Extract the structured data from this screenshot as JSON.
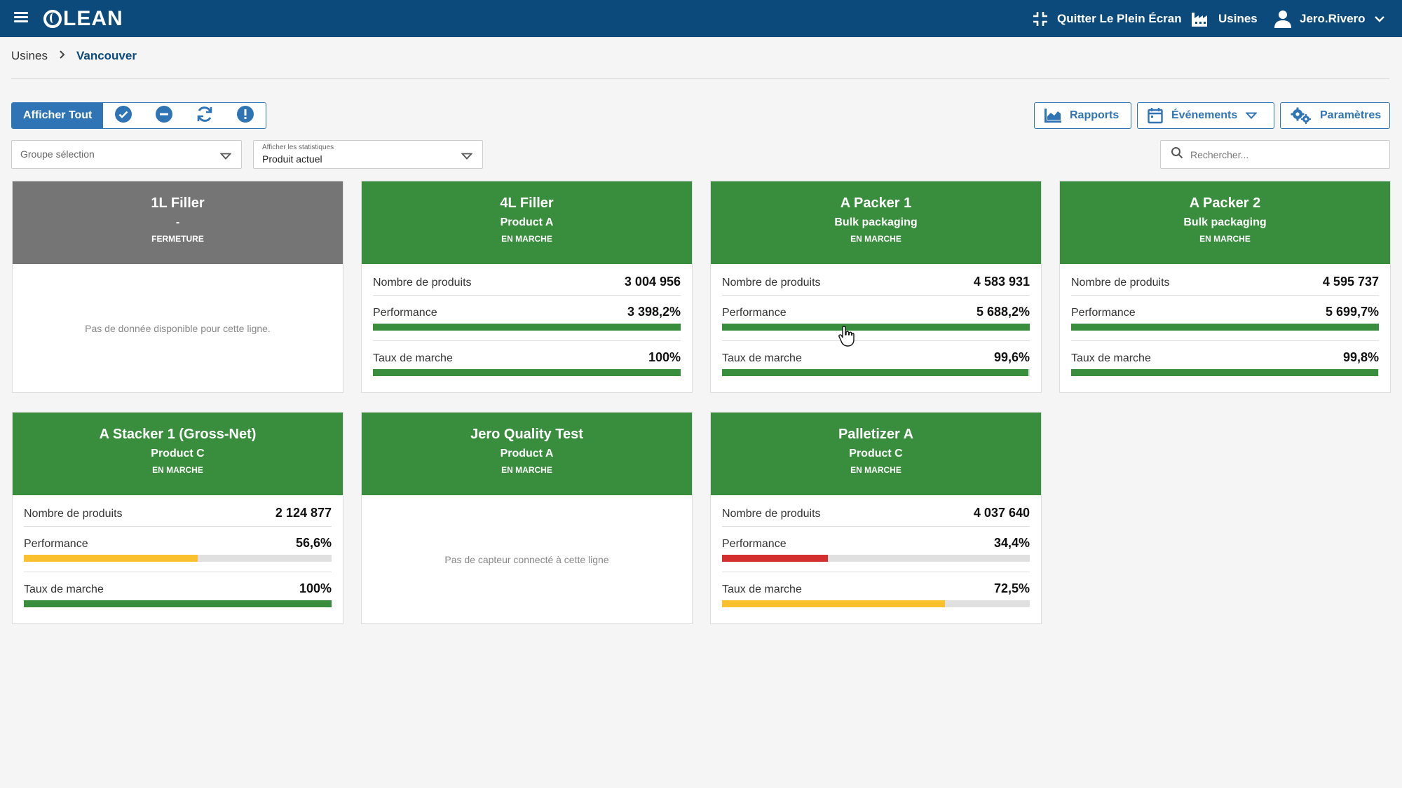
{
  "app": {
    "logo": "LEAN"
  },
  "topbar": {
    "exit_fullscreen": "Quitter Le Plein Écran",
    "plants": "Usines",
    "user": "Jero.Rivero"
  },
  "breadcrumb": {
    "root": "Usines",
    "current": "Vancouver"
  },
  "filters": {
    "show_all": "Afficher Tout"
  },
  "toolbar": {
    "reports": "Rapports",
    "events": "Événements",
    "settings": "Paramètres"
  },
  "selects": {
    "group_placeholder": "Groupe sélection",
    "stats_label": "Afficher les statistiques",
    "stats_value": "Produit actuel"
  },
  "search": {
    "placeholder": "Rechercher..."
  },
  "labels": {
    "products": "Nombre de produits",
    "performance": "Performance",
    "uptime": "Taux de marche"
  },
  "colors": {
    "header": "#0d4a7c",
    "accent": "#2f74b5",
    "running": "#388e3c",
    "stopped": "#757575",
    "warning": "#fbc02d",
    "danger": "#d32f2f"
  },
  "lines": [
    {
      "name": "1L Filler",
      "product": "-",
      "status": "FERMETURE",
      "state": "stopped",
      "message": "Pas de donnée disponible pour cette ligne."
    },
    {
      "name": "4L Filler",
      "product": "Product A",
      "status": "EN MARCHE",
      "state": "running",
      "count": "3 004 956",
      "performance": "3 398,2%",
      "performance_pct": 100,
      "performance_color": "green",
      "uptime": "100%",
      "uptime_pct": 100,
      "uptime_color": "green"
    },
    {
      "name": "A Packer 1",
      "product": "Bulk packaging",
      "status": "EN MARCHE",
      "state": "running",
      "count": "4 583 931",
      "performance": "5 688,2%",
      "performance_pct": 100,
      "performance_color": "green",
      "uptime": "99,6%",
      "uptime_pct": 99.6,
      "uptime_color": "green"
    },
    {
      "name": "A Packer 2",
      "product": "Bulk packaging",
      "status": "EN MARCHE",
      "state": "running",
      "count": "4 595 737",
      "performance": "5 699,7%",
      "performance_pct": 100,
      "performance_color": "green",
      "uptime": "99,8%",
      "uptime_pct": 99.8,
      "uptime_color": "green"
    },
    {
      "name": "A Stacker 1 (Gross-Net)",
      "product": "Product C",
      "status": "EN MARCHE",
      "state": "running",
      "count": "2 124 877",
      "performance": "56,6%",
      "performance_pct": 56.6,
      "performance_color": "yellow",
      "uptime": "100%",
      "uptime_pct": 100,
      "uptime_color": "green"
    },
    {
      "name": "Jero Quality Test",
      "product": "Product A",
      "status": "EN MARCHE",
      "state": "running",
      "message": "Pas de capteur connecté à cette ligne"
    },
    {
      "name": "Palletizer A",
      "product": "Product C",
      "status": "EN MARCHE",
      "state": "running",
      "count": "4 037 640",
      "performance": "34,4%",
      "performance_pct": 34.4,
      "performance_color": "red",
      "uptime": "72,5%",
      "uptime_pct": 72.5,
      "uptime_color": "yellow"
    }
  ]
}
